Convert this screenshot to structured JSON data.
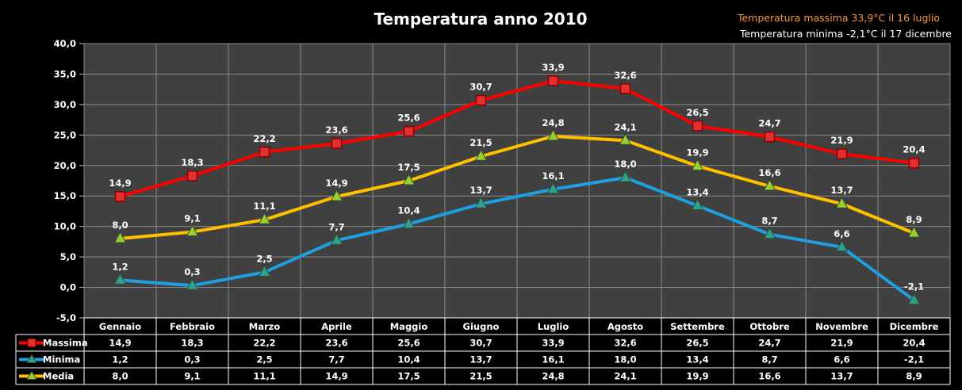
{
  "chart_data": {
    "type": "line",
    "title": "Temperatura anno 2010",
    "annotations": {
      "max_note": "Temperatura massima  33,9°C il 16  luglio",
      "min_note": "Temperatura minima  -2,1°C il 17 dicembre",
      "max_color": "#f79646",
      "min_color": "#ffffff"
    },
    "categories": [
      "Gennaio",
      "Febbraio",
      "Marzo",
      "Aprile",
      "Maggio",
      "Giugno",
      "Luglio",
      "Agosto",
      "Settembre",
      "Ottobre",
      "Novembre",
      "Dicembre"
    ],
    "y_ticks": [
      "40,0",
      "35,0",
      "30,0",
      "25,0",
      "20,0",
      "15,0",
      "10,0",
      "5,0",
      "0,0",
      "-5,0"
    ],
    "ylim": [
      -5,
      40
    ],
    "grid": true,
    "plot_background": "#404040",
    "series": [
      {
        "name": "Massima",
        "color": "#ff0000",
        "marker": "square",
        "marker_color": "#e03030",
        "values": [
          14.9,
          18.3,
          22.2,
          23.6,
          25.6,
          30.7,
          33.9,
          32.6,
          26.5,
          24.7,
          21.9,
          20.4
        ],
        "labels": [
          "14,9",
          "18,3",
          "22,2",
          "23,6",
          "25,6",
          "30,7",
          "33,9",
          "32,6",
          "26,5",
          "24,7",
          "21,9",
          "20,4"
        ]
      },
      {
        "name": "Minima",
        "color": "#1ea0e0",
        "marker": "triangle",
        "marker_color": "#30a090",
        "values": [
          1.2,
          0.3,
          2.5,
          7.7,
          10.4,
          13.7,
          16.1,
          18.0,
          13.4,
          8.7,
          6.6,
          -2.1
        ],
        "labels": [
          "1,2",
          "0,3",
          "2,5",
          "7,7",
          "10,4",
          "13,7",
          "16,1",
          "18,0",
          "13,4",
          "8,7",
          "6,6",
          "-2,1"
        ]
      },
      {
        "name": "Media",
        "color": "#ffc000",
        "marker": "triangle",
        "marker_color": "#9acd32",
        "values": [
          8.0,
          9.1,
          11.1,
          14.9,
          17.5,
          21.5,
          24.8,
          24.1,
          19.9,
          16.6,
          13.7,
          8.9
        ],
        "labels": [
          "8,0",
          "9,1",
          "11,1",
          "14,9",
          "17,5",
          "21,5",
          "24,8",
          "24,1",
          "19,9",
          "16,6",
          "13,7",
          "8,9"
        ]
      }
    ]
  }
}
